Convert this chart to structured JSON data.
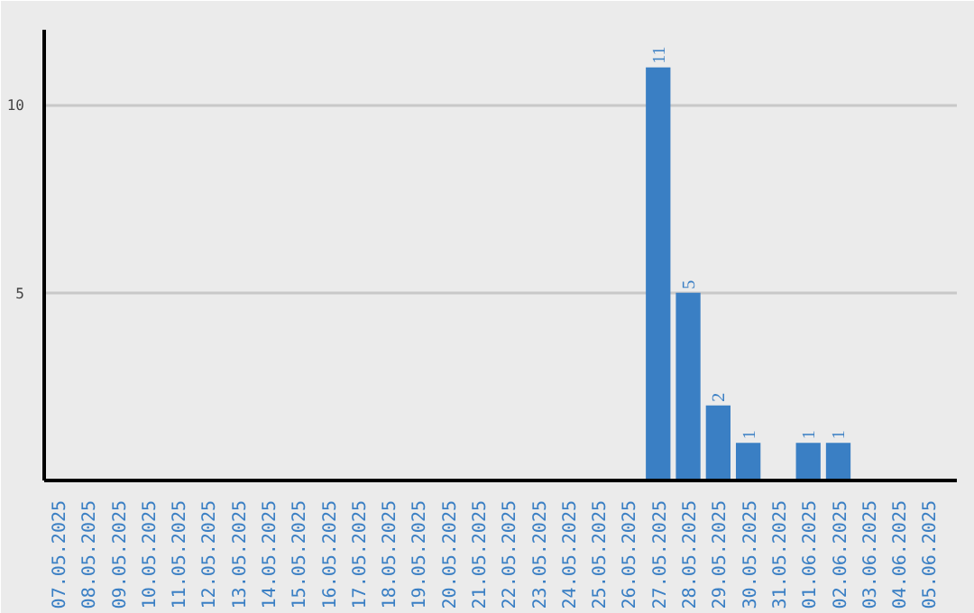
{
  "chart_data": {
    "type": "bar",
    "categories": [
      "07.05.2025",
      "08.05.2025",
      "09.05.2025",
      "10.05.2025",
      "11.05.2025",
      "12.05.2025",
      "13.05.2025",
      "14.05.2025",
      "15.05.2025",
      "16.05.2025",
      "17.05.2025",
      "18.05.2025",
      "19.05.2025",
      "20.05.2025",
      "21.05.2025",
      "22.05.2025",
      "23.05.2025",
      "24.05.2025",
      "25.05.2025",
      "26.05.2025",
      "27.05.2025",
      "28.05.2025",
      "29.05.2025",
      "30.05.2025",
      "31.05.2025",
      "01.06.2025",
      "02.06.2025",
      "03.06.2025",
      "04.06.2025",
      "05.06.2025"
    ],
    "values": [
      0,
      0,
      0,
      0,
      0,
      0,
      0,
      0,
      0,
      0,
      0,
      0,
      0,
      0,
      0,
      0,
      0,
      0,
      0,
      0,
      11,
      5,
      2,
      1,
      0,
      1,
      1,
      0,
      0,
      0
    ],
    "value_labels": [
      null,
      null,
      null,
      null,
      null,
      null,
      null,
      null,
      null,
      null,
      null,
      null,
      null,
      null,
      null,
      null,
      null,
      null,
      null,
      null,
      "11",
      "5",
      "2",
      "1",
      null,
      "1",
      "1",
      null,
      null,
      null
    ],
    "color": "#3a7fc4",
    "ylim": [
      0,
      12
    ],
    "yticks": [
      5,
      10
    ],
    "grid": "y"
  }
}
